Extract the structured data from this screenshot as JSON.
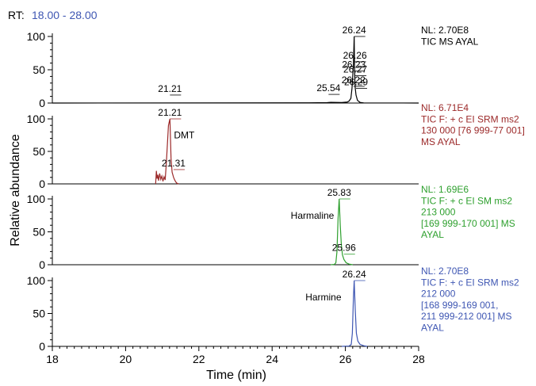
{
  "chart_data": {
    "type": "line",
    "rt_prefix": "RT:",
    "rt_range": "18.00 - 28.00",
    "xlabel": "Time (min)",
    "ylabel": "Relative abundance",
    "xlim": [
      18,
      28
    ],
    "x_ticks": [
      "18",
      "20",
      "22",
      "24",
      "26",
      "28"
    ],
    "panels": [
      {
        "ylim": [
          0,
          100
        ],
        "y_ticks": [
          "0",
          "50",
          "100"
        ],
        "color": "#000000",
        "info": [
          "NL: 2.70E8",
          "TIC MS AYAL"
        ],
        "trace": [
          [
            18.0,
            0
          ],
          [
            25.0,
            0.3
          ],
          [
            25.5,
            0.6
          ],
          [
            25.6,
            1.0
          ],
          [
            25.9,
            0.8
          ],
          [
            26.05,
            1.5
          ],
          [
            26.1,
            3
          ],
          [
            26.15,
            7
          ],
          [
            26.18,
            22
          ],
          [
            26.2,
            40
          ],
          [
            26.22,
            60
          ],
          [
            26.24,
            100
          ],
          [
            26.25,
            55
          ],
          [
            26.26,
            32
          ],
          [
            26.27,
            22
          ],
          [
            26.29,
            12
          ],
          [
            26.33,
            4
          ],
          [
            26.4,
            1
          ],
          [
            26.5,
            0.2
          ],
          [
            28.0,
            0
          ]
        ],
        "labels": [
          {
            "x": 26.24,
            "y": 100,
            "text": "26.24"
          },
          {
            "x": 26.26,
            "y": 62,
            "text": "26.26"
          },
          {
            "x": 26.23,
            "y": 48,
            "text": "26.23"
          },
          {
            "x": 26.27,
            "y": 41,
            "text": "26.27"
          },
          {
            "x": 26.22,
            "y": 25,
            "text": "26.22"
          },
          {
            "x": 26.29,
            "y": 22,
            "text": "26.29"
          },
          {
            "x": 25.54,
            "y": 13,
            "text": "25.54"
          },
          {
            "x": 21.21,
            "y": 12,
            "text": "21.21"
          }
        ]
      },
      {
        "ylim": [
          0,
          100
        ],
        "y_ticks": [
          "0",
          "50",
          "100"
        ],
        "color": "#9c2a2a",
        "compound": "DMT",
        "info": [
          "NL: 6.71E4",
          "TIC F: + c EI SRM ms2",
          "130 000 [76 999-77 001]",
          "MS AYAL"
        ],
        "trace": [
          [
            20.82,
            0
          ],
          [
            20.84,
            20
          ],
          [
            20.86,
            8
          ],
          [
            20.88,
            14
          ],
          [
            20.9,
            5
          ],
          [
            20.93,
            16
          ],
          [
            20.96,
            7
          ],
          [
            20.99,
            12
          ],
          [
            21.02,
            4
          ],
          [
            21.05,
            11
          ],
          [
            21.08,
            6
          ],
          [
            21.11,
            30
          ],
          [
            21.14,
            60
          ],
          [
            21.17,
            90
          ],
          [
            21.21,
            100
          ],
          [
            21.24,
            40
          ],
          [
            21.27,
            18
          ],
          [
            21.31,
            10
          ],
          [
            21.34,
            6
          ],
          [
            21.37,
            3
          ],
          [
            21.4,
            1
          ],
          [
            21.45,
            0
          ]
        ],
        "labels": [
          {
            "x": 21.21,
            "y": 100,
            "text": "21.21"
          },
          {
            "x": 21.31,
            "y": 22,
            "text": "21.31"
          }
        ]
      },
      {
        "ylim": [
          0,
          100
        ],
        "y_ticks": [
          "0",
          "50",
          "100"
        ],
        "color": "#2ea02e",
        "compound": "Harmaline",
        "info": [
          "NL: 1.69E6",
          "TIC F: + c EI SM ms2",
          "213 000",
          "[169 999-170 001] MS",
          "AYAL"
        ],
        "trace": [
          [
            25.6,
            0
          ],
          [
            25.7,
            0.5
          ],
          [
            25.74,
            3
          ],
          [
            25.77,
            20
          ],
          [
            25.8,
            70
          ],
          [
            25.83,
            100
          ],
          [
            25.86,
            60
          ],
          [
            25.89,
            30
          ],
          [
            25.92,
            15
          ],
          [
            25.96,
            8
          ],
          [
            26.02,
            3
          ],
          [
            26.1,
            1
          ],
          [
            26.2,
            0
          ]
        ],
        "labels": [
          {
            "x": 25.83,
            "y": 100,
            "text": "25.83"
          },
          {
            "x": 25.96,
            "y": 16,
            "text": "25.96"
          }
        ]
      },
      {
        "ylim": [
          0,
          100
        ],
        "y_ticks": [
          "0",
          "50",
          "100"
        ],
        "color": "#3f57b3",
        "compound": "Harmine",
        "info": [
          "NL: 2.70E8",
          "TIC F: + c EI SRM ms2",
          "212 000",
          "[168 999-169 001,",
          "211 999-212 001] MS",
          "AYAL"
        ],
        "trace": [
          [
            25.9,
            0
          ],
          [
            26.1,
            0.5
          ],
          [
            26.16,
            3
          ],
          [
            26.19,
            20
          ],
          [
            26.22,
            75
          ],
          [
            26.24,
            100
          ],
          [
            26.27,
            55
          ],
          [
            26.3,
            20
          ],
          [
            26.34,
            8
          ],
          [
            26.4,
            3
          ],
          [
            26.5,
            1
          ],
          [
            26.6,
            0
          ]
        ],
        "labels": [
          {
            "x": 26.24,
            "y": 100,
            "text": "26.24"
          }
        ]
      }
    ]
  },
  "colors": {
    "rt_range": "#3f57b3",
    "axis": "#000000"
  }
}
